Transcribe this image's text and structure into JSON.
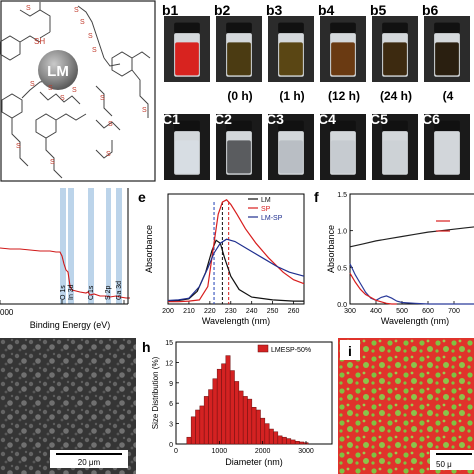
{
  "panel_a": {
    "center_label": "LM",
    "thiol_label": "SH",
    "s_label": "S"
  },
  "vials": {
    "row_b": [
      {
        "id": "b1",
        "time": "",
        "color": "#d8231f"
      },
      {
        "id": "b2",
        "time": "(0 h)",
        "color": "#4b3b12"
      },
      {
        "id": "b3",
        "time": "(1 h)",
        "color": "#5a4614"
      },
      {
        "id": "b4",
        "time": "(12 h)",
        "color": "#6a3a12"
      },
      {
        "id": "b5",
        "time": "(24 h)",
        "color": "#3d2a10"
      },
      {
        "id": "b6",
        "time": "(4",
        "color": "#2a1f10"
      }
    ],
    "row_c": [
      {
        "id": "c1",
        "color": "#d7dde3"
      },
      {
        "id": "c2",
        "color": "#5a5c5f"
      },
      {
        "id": "c3",
        "color": "#b9bec4"
      },
      {
        "id": "c4",
        "color": "#c6cbd0"
      },
      {
        "id": "c5",
        "color": "#cdd2d6"
      },
      {
        "id": "c6",
        "color": "#d2d6da"
      }
    ]
  },
  "xps": {
    "xlabel": "Binding Energy (eV)",
    "tick_label": "000",
    "peaks": [
      "O 1s",
      "In 3d",
      "C 1s",
      "S 2p",
      "Ga 3d"
    ]
  },
  "sem_left": {
    "scale": "20 μm"
  },
  "map_i": {
    "label": "i",
    "scale": "50 μ"
  },
  "chart_data": [
    {
      "panel": "e",
      "type": "line",
      "xlabel": "Wavelength (nm)",
      "ylabel": "Absorbance",
      "xlim": [
        200,
        265
      ],
      "xticks": [
        200,
        210,
        220,
        230,
        240,
        250,
        260
      ],
      "grid": false,
      "legend": "top-right",
      "dashed_markers": [
        {
          "x": 222,
          "color": "#1f3fb5"
        },
        {
          "x": 226,
          "color": "#111111"
        },
        {
          "x": 229,
          "color": "#d81e1e"
        }
      ],
      "series": [
        {
          "name": "LM",
          "color": "#111111",
          "x": [
            200,
            205,
            210,
            214,
            218,
            221,
            223,
            225,
            227,
            230,
            234,
            240,
            250,
            260,
            265
          ],
          "y": [
            0.05,
            0.06,
            0.09,
            0.22,
            0.55,
            0.92,
            1.1,
            1.05,
            0.8,
            0.48,
            0.25,
            0.12,
            0.07,
            0.05,
            0.05
          ]
        },
        {
          "name": "SP",
          "color": "#d81e1e",
          "x": [
            200,
            205,
            210,
            215,
            219,
            222,
            224,
            226,
            228,
            230,
            233,
            237,
            242,
            248,
            255,
            260,
            265
          ],
          "y": [
            0.04,
            0.04,
            0.05,
            0.07,
            0.3,
            1.05,
            1.55,
            1.76,
            1.8,
            1.72,
            1.55,
            1.3,
            1.05,
            0.8,
            0.55,
            0.42,
            0.35
          ]
        },
        {
          "name": "LM-SP",
          "color": "#1f2f8f",
          "x": [
            200,
            205,
            210,
            215,
            219,
            222,
            225,
            228,
            232,
            238,
            245,
            252,
            258,
            265
          ],
          "y": [
            0.06,
            0.07,
            0.1,
            0.3,
            0.62,
            0.88,
            1.05,
            1.12,
            1.08,
            0.95,
            0.8,
            0.65,
            0.55,
            0.48
          ]
        }
      ]
    },
    {
      "panel": "f",
      "type": "line",
      "xlabel": "Wavelength (nm)",
      "ylabel": "Absorbance",
      "xlim": [
        300,
        800
      ],
      "ylim": [
        0,
        1.5
      ],
      "xticks": [
        300,
        400,
        500,
        600,
        700
      ],
      "yticks": [
        0.0,
        0.5,
        1.0,
        1.5
      ],
      "grid": false,
      "series": [
        {
          "color": "#222222",
          "x": [
            300,
            350,
            400,
            450,
            500,
            550,
            600,
            650,
            700,
            750,
            800
          ],
          "y": [
            0.78,
            0.82,
            0.86,
            0.89,
            0.92,
            0.95,
            0.98,
            1.0,
            1.02,
            1.04,
            1.06
          ]
        },
        {
          "color": "#2a3a9a",
          "x": [
            300,
            320,
            340,
            360,
            380,
            400,
            420,
            440,
            460,
            480,
            500,
            550,
            600,
            700,
            800
          ],
          "y": [
            0.55,
            0.4,
            0.28,
            0.16,
            0.08,
            0.05,
            0.09,
            0.11,
            0.08,
            0.04,
            0.02,
            0.01,
            0.0,
            0.0,
            0.0
          ]
        },
        {
          "color": "#d81e1e",
          "x": [
            300,
            320,
            340,
            360,
            380,
            400,
            420,
            440,
            460,
            480
          ],
          "y": [
            0.42,
            0.3,
            0.2,
            0.13,
            0.09,
            0.05,
            0.03,
            0.01,
            0.0,
            0.0
          ]
        }
      ]
    },
    {
      "panel": "h",
      "type": "bar",
      "xlabel": "Diameter (nm)",
      "ylabel": "Size Distribution (%)",
      "xlim": [
        0,
        3600
      ],
      "ylim": [
        0,
        15
      ],
      "xticks": [
        0,
        1000,
        2000,
        3000
      ],
      "yticks": [
        0,
        3,
        6,
        9,
        12,
        15
      ],
      "grid": false,
      "legend": "top-right",
      "series_name": "LMESP-50%",
      "bar_color": "#d42222",
      "bin_width": 100,
      "x": [
        300,
        400,
        500,
        600,
        700,
        800,
        900,
        1000,
        1100,
        1200,
        1300,
        1400,
        1500,
        1600,
        1700,
        1800,
        1900,
        2000,
        2100,
        2200,
        2300,
        2400,
        2500,
        2600,
        2700,
        2800,
        2900,
        3000
      ],
      "values": [
        1.0,
        4.0,
        5.0,
        5.6,
        7.0,
        8.0,
        9.6,
        11.0,
        11.8,
        13.0,
        10.8,
        9.2,
        7.8,
        7.0,
        6.6,
        5.4,
        5.0,
        3.8,
        3.0,
        2.2,
        1.8,
        1.2,
        1.0,
        0.8,
        0.6,
        0.4,
        0.3,
        0.2
      ]
    }
  ]
}
